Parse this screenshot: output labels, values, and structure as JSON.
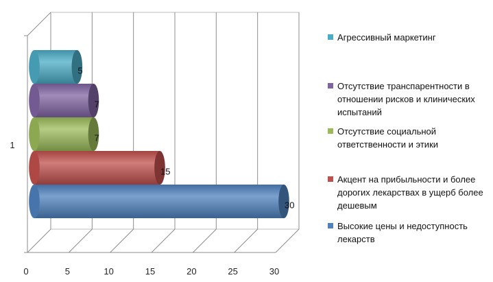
{
  "chart_data": {
    "type": "bar",
    "orientation": "horizontal",
    "style": "3d-cylinder",
    "categories": [
      "1"
    ],
    "xlim": [
      0,
      30
    ],
    "x_ticks": [
      "0",
      "5",
      "10",
      "15",
      "20",
      "25",
      "30"
    ],
    "grid": true,
    "legend_position": "right",
    "series": [
      {
        "name": "Высокие цены и недоступность лекарств",
        "value": 30,
        "color": "#4F81BD",
        "value_label": "30"
      },
      {
        "name": "Акцент на прибыльности и более дорогих лекарствах в ущерб более дешевым",
        "value": 15,
        "color": "#C0504D",
        "value_label": "15"
      },
      {
        "name": "Отсутствие социальной ответственности и этики",
        "value": 7,
        "color": "#9BBB59",
        "value_label": "7"
      },
      {
        "name": "Отсутствие транспарентности в отношении рисков и клинических испытаний",
        "value": 7,
        "color": "#8064A2",
        "value_label": "7"
      },
      {
        "name": "Агрессивный маркетинг",
        "value": 5,
        "color": "#4BACC6",
        "value_label": "5"
      }
    ],
    "legend_order": [
      4,
      3,
      2,
      1,
      0
    ]
  }
}
